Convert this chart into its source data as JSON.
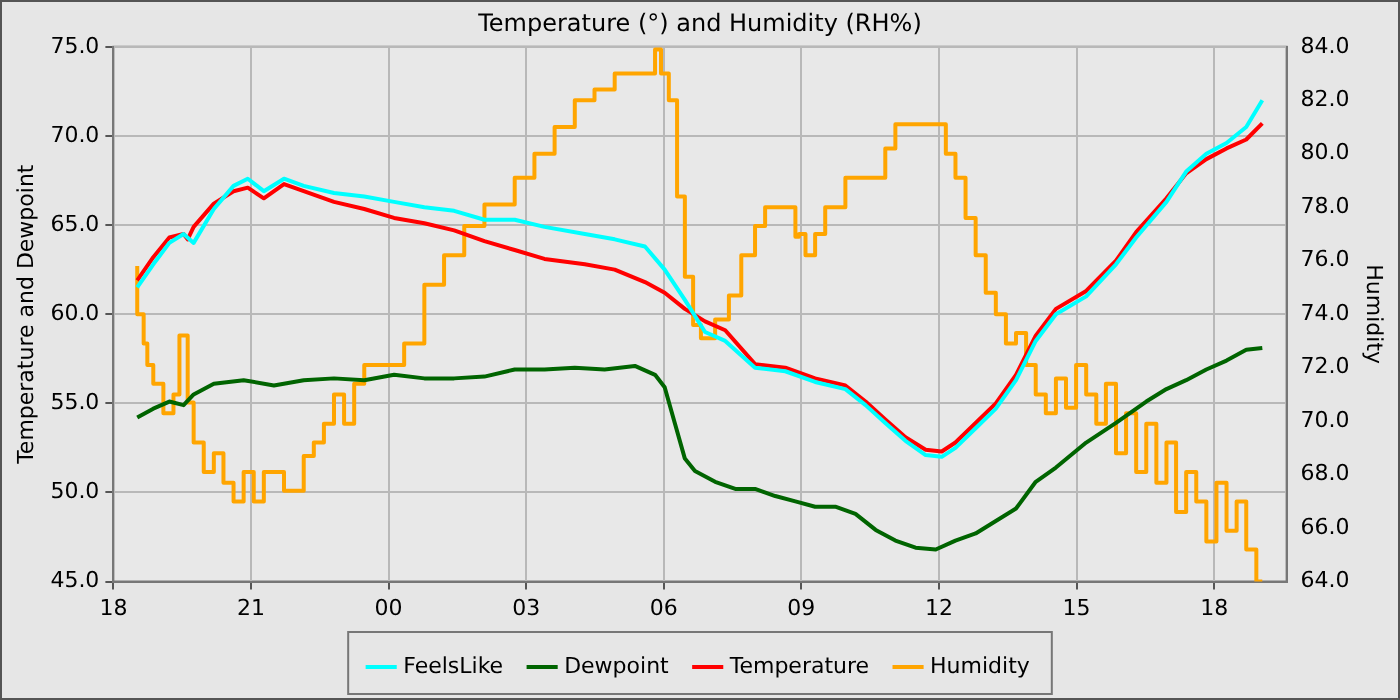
{
  "chart_data": {
    "type": "line",
    "title": "Temperature (°) and Humidity (RH%)",
    "ylabel": "Temperature and Dewpoint",
    "y2label": "Humidity",
    "xlim": [
      18,
      43.58
    ],
    "xticks": [
      {
        "value": 18,
        "label": "18"
      },
      {
        "value": 21,
        "label": "21"
      },
      {
        "value": 24,
        "label": "00"
      },
      {
        "value": 27,
        "label": "03"
      },
      {
        "value": 30,
        "label": "06"
      },
      {
        "value": 33,
        "label": "09"
      },
      {
        "value": 36,
        "label": "12"
      },
      {
        "value": 39,
        "label": "15"
      },
      {
        "value": 42,
        "label": "18"
      }
    ],
    "ylim": [
      45,
      75
    ],
    "yticks": [
      {
        "value": 45,
        "label": "45.0"
      },
      {
        "value": 50,
        "label": "50.0"
      },
      {
        "value": 55,
        "label": "55.0"
      },
      {
        "value": 60,
        "label": "60.0"
      },
      {
        "value": 65,
        "label": "65.0"
      },
      {
        "value": 70,
        "label": "70.0"
      },
      {
        "value": 75,
        "label": "75.0"
      }
    ],
    "y2lim": [
      64,
      84
    ],
    "y2ticks": [
      {
        "value": 64,
        "label": "64.0"
      },
      {
        "value": 66,
        "label": "66.0"
      },
      {
        "value": 68,
        "label": "68.0"
      },
      {
        "value": 70,
        "label": "70.0"
      },
      {
        "value": 72,
        "label": "72.0"
      },
      {
        "value": 74,
        "label": "74.0"
      },
      {
        "value": 76,
        "label": "76.0"
      },
      {
        "value": 78,
        "label": "78.0"
      },
      {
        "value": 80,
        "label": "80.0"
      },
      {
        "value": 82,
        "label": "82.0"
      },
      {
        "value": 84,
        "label": "84.0"
      }
    ],
    "grid": true,
    "legend": "bottom",
    "marker": "none",
    "line_style": "solid",
    "series": [
      {
        "name": "FeelsLike",
        "color": "#00ffff",
        "x": [
          18.52,
          18.87,
          19.22,
          19.53,
          19.75,
          20.19,
          20.62,
          20.93,
          21.28,
          21.72,
          22.15,
          22.81,
          23.47,
          24.12,
          24.78,
          25.43,
          26.09,
          26.75,
          27.4,
          28.28,
          28.93,
          29.59,
          30.02,
          30.46,
          30.9,
          31.34,
          31.99,
          32.65,
          33.3,
          33.96,
          34.4,
          34.83,
          35.27,
          35.71,
          36.06,
          36.36,
          36.8,
          37.24,
          37.68,
          38.11,
          38.55,
          39.21,
          39.86,
          40.3,
          40.96,
          41.39,
          41.83,
          42.27,
          42.7,
          43.05
        ],
        "values": [
          61.5,
          62.8,
          64.0,
          64.5,
          64.0,
          65.9,
          67.2,
          67.6,
          66.9,
          67.6,
          67.2,
          66.8,
          66.6,
          66.3,
          66.0,
          65.8,
          65.3,
          65.3,
          64.9,
          64.5,
          64.2,
          63.8,
          62.5,
          60.8,
          59.0,
          58.5,
          57.0,
          56.8,
          56.2,
          55.8,
          54.9,
          53.9,
          52.9,
          52.1,
          52.0,
          52.5,
          53.6,
          54.7,
          56.3,
          58.5,
          60.0,
          61.0,
          62.8,
          64.3,
          66.3,
          68.0,
          69.0,
          69.6,
          70.5,
          72.0
        ]
      },
      {
        "name": "Dewpoint",
        "color": "#006400",
        "x": [
          18.52,
          18.87,
          19.22,
          19.53,
          19.75,
          20.19,
          20.84,
          21.5,
          22.15,
          22.81,
          23.47,
          24.12,
          24.78,
          25.43,
          26.09,
          26.75,
          27.4,
          28.06,
          28.71,
          29.37,
          29.81,
          30.02,
          30.24,
          30.46,
          30.68,
          31.12,
          31.56,
          31.99,
          32.43,
          32.87,
          33.3,
          33.74,
          34.18,
          34.62,
          35.05,
          35.49,
          35.93,
          36.36,
          36.8,
          37.24,
          37.68,
          38.11,
          38.55,
          39.21,
          39.86,
          40.52,
          40.96,
          41.39,
          41.83,
          42.27,
          42.7,
          43.05
        ],
        "values": [
          54.2,
          54.7,
          55.1,
          54.9,
          55.5,
          56.1,
          56.3,
          56.0,
          56.3,
          56.4,
          56.3,
          56.6,
          56.4,
          56.4,
          56.5,
          56.9,
          56.9,
          57.0,
          56.9,
          57.1,
          56.6,
          55.9,
          53.9,
          51.9,
          51.2,
          50.6,
          50.2,
          50.2,
          49.8,
          49.5,
          49.2,
          49.2,
          48.8,
          47.9,
          47.3,
          46.9,
          46.8,
          47.3,
          47.7,
          48.4,
          49.1,
          50.6,
          51.4,
          52.8,
          53.9,
          55.1,
          55.8,
          56.3,
          56.9,
          57.4,
          58.0,
          58.1
        ]
      },
      {
        "name": "Temperature",
        "color": "#ff0000",
        "x": [
          18.52,
          18.87,
          19.22,
          19.53,
          19.62,
          19.75,
          20.19,
          20.62,
          20.93,
          21.28,
          21.72,
          22.15,
          22.81,
          23.47,
          24.12,
          24.78,
          25.43,
          26.09,
          26.75,
          27.4,
          28.28,
          28.93,
          29.59,
          30.02,
          30.46,
          30.9,
          31.34,
          31.99,
          32.65,
          33.3,
          33.96,
          34.4,
          34.83,
          35.27,
          35.71,
          36.06,
          36.36,
          36.8,
          37.24,
          37.68,
          38.11,
          38.55,
          39.21,
          39.86,
          40.3,
          40.96,
          41.39,
          41.83,
          42.27,
          42.7,
          43.05
        ],
        "values": [
          61.9,
          63.2,
          64.3,
          64.5,
          64.2,
          64.9,
          66.2,
          66.9,
          67.1,
          66.5,
          67.3,
          66.9,
          66.3,
          65.9,
          65.4,
          65.1,
          64.7,
          64.1,
          63.6,
          63.1,
          62.8,
          62.5,
          61.8,
          61.2,
          60.3,
          59.6,
          59.1,
          57.2,
          57.0,
          56.4,
          56.0,
          55.1,
          54.1,
          53.1,
          52.4,
          52.3,
          52.8,
          53.9,
          55.0,
          56.6,
          58.8,
          60.3,
          61.3,
          63.0,
          64.6,
          66.5,
          67.9,
          68.7,
          69.3,
          69.8,
          70.7
        ]
      },
      {
        "name": "Humidity",
        "color": "#ffa500",
        "type": "step",
        "axis": "y2",
        "x": [
          18.52,
          18.66,
          18.74,
          18.87,
          19.09,
          19.31,
          19.44,
          19.62,
          19.75,
          19.97,
          20.19,
          20.4,
          20.62,
          20.84,
          21.06,
          21.28,
          21.72,
          22.15,
          22.37,
          22.59,
          22.81,
          23.03,
          23.25,
          23.47,
          23.9,
          24.34,
          24.78,
          25.21,
          25.65,
          26.09,
          26.75,
          27.18,
          27.62,
          28.06,
          28.49,
          28.93,
          29.37,
          29.81,
          29.94,
          30.11,
          30.29,
          30.46,
          30.64,
          30.81,
          31.12,
          31.42,
          31.69,
          31.99,
          32.21,
          32.43,
          32.87,
          32.95,
          33.09,
          33.3,
          33.52,
          33.96,
          34.31,
          34.83,
          35.05,
          35.27,
          35.71,
          36.15,
          36.36,
          36.58,
          36.8,
          37.02,
          37.24,
          37.46,
          37.68,
          37.9,
          38.11,
          38.33,
          38.55,
          38.77,
          38.99,
          39.21,
          39.43,
          39.64,
          39.86,
          40.08,
          40.3,
          40.52,
          40.74,
          40.96,
          41.17,
          41.39,
          41.61,
          41.83,
          42.05,
          42.27,
          42.49,
          42.7,
          42.92,
          43.05
        ],
        "values": [
          75.8,
          74.0,
          72.9,
          72.1,
          71.4,
          70.3,
          71.0,
          73.2,
          70.7,
          69.2,
          68.1,
          68.8,
          67.7,
          67.0,
          68.1,
          67.0,
          68.1,
          67.4,
          68.7,
          69.2,
          69.9,
          71.0,
          69.9,
          71.4,
          72.1,
          72.1,
          72.9,
          75.1,
          76.2,
          77.3,
          78.1,
          79.1,
          80.0,
          81.0,
          82.0,
          82.4,
          83.0,
          83.0,
          83.9,
          83.0,
          82.0,
          78.4,
          75.4,
          73.6,
          73.1,
          73.8,
          74.7,
          76.2,
          77.3,
          78.0,
          78.0,
          76.9,
          77.0,
          76.2,
          77.0,
          78.0,
          79.1,
          79.1,
          80.2,
          81.1,
          81.1,
          81.1,
          80.0,
          79.1,
          77.6,
          76.2,
          74.8,
          74.0,
          72.9,
          73.3,
          72.1,
          71.0,
          70.3,
          71.6,
          70.5,
          72.1,
          71.0,
          69.9,
          71.4,
          68.8,
          70.3,
          68.1,
          69.9,
          67.7,
          69.2,
          66.6,
          68.1,
          67.0,
          65.5,
          67.7,
          65.9,
          67.0,
          65.2,
          64.0
        ]
      }
    ]
  }
}
